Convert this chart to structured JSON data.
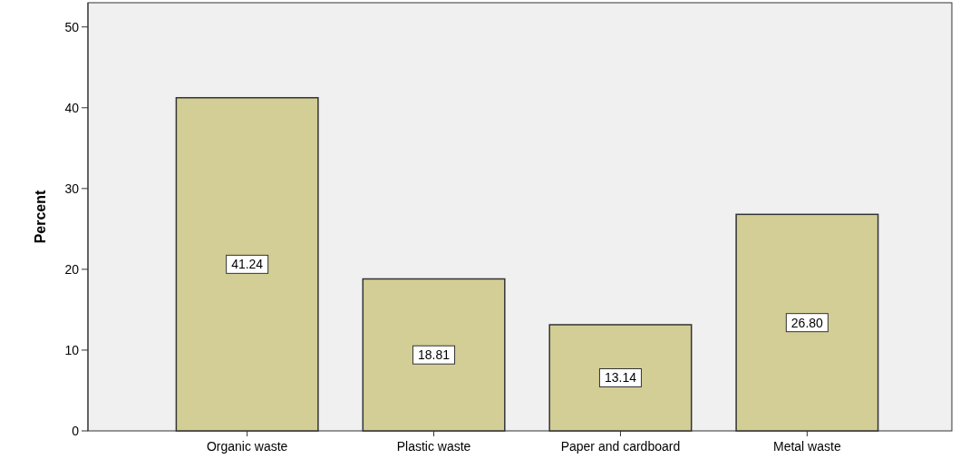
{
  "chart_data": {
    "type": "bar",
    "ylabel": "Percent",
    "categories": [
      "Organic waste",
      "Plastic waste",
      "Paper and cardboard",
      "Metal waste"
    ],
    "values": [
      41.24,
      18.81,
      13.14,
      26.8
    ],
    "value_labels": [
      "41.24",
      "18.81",
      "13.14",
      "26.80"
    ],
    "color": "#d3ce96",
    "ylim": [
      0,
      53
    ],
    "yticks": [
      0,
      10,
      20,
      30,
      40,
      50
    ],
    "grid": false
  }
}
